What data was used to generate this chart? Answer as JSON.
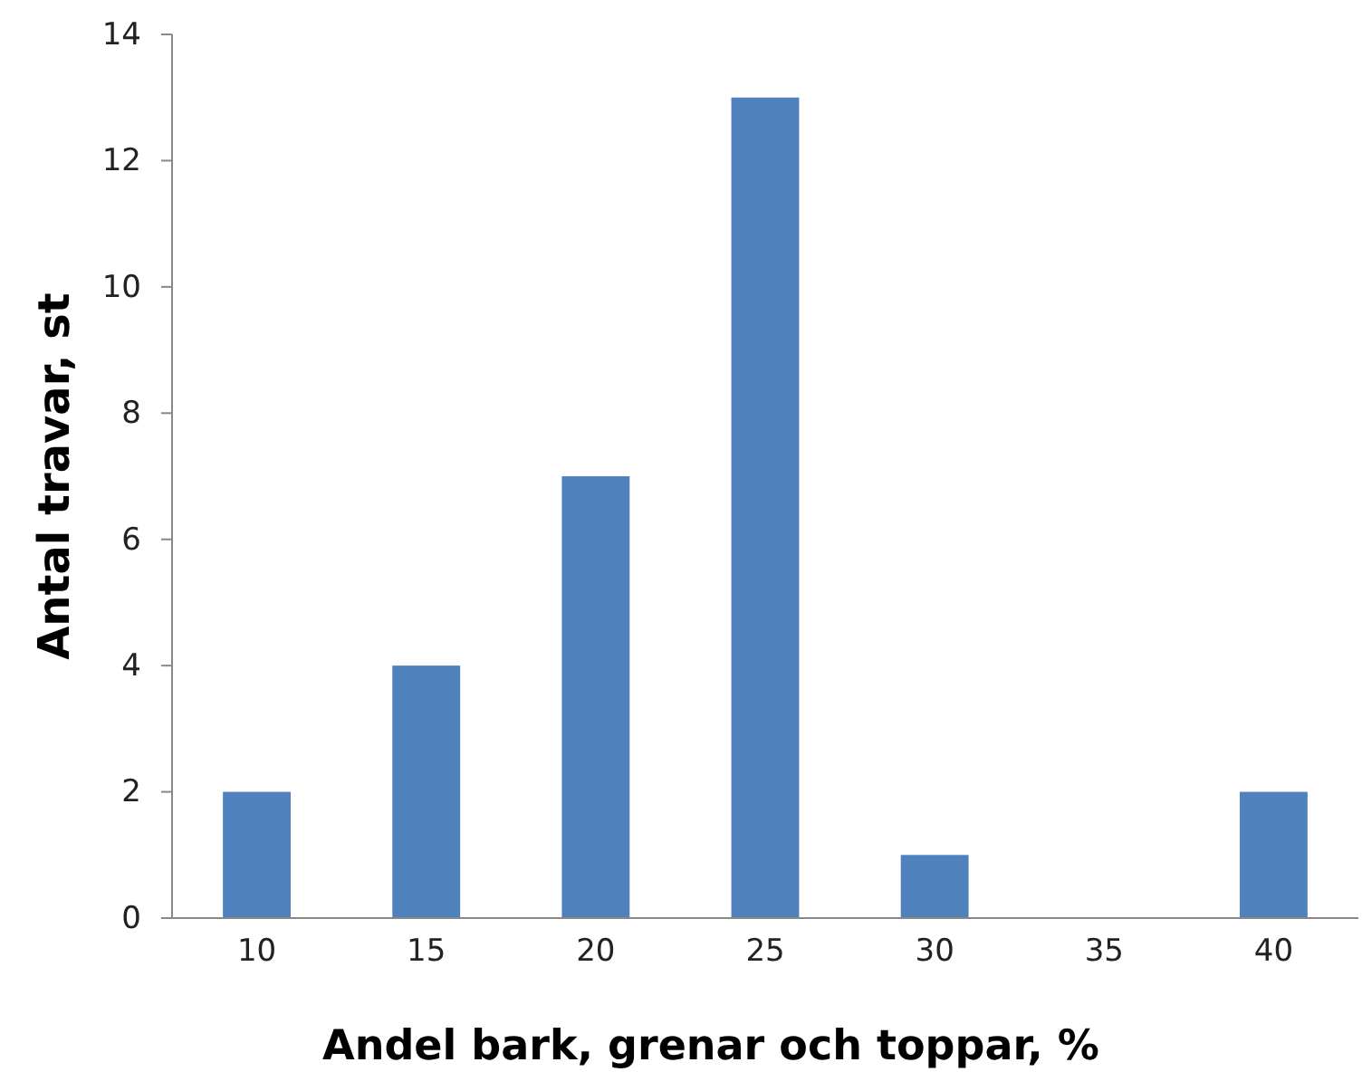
{
  "chart_data": {
    "type": "bar",
    "xlabel": "Andel bark, grenar och toppar, %",
    "ylabel": "Antal travar, st",
    "categories": [
      "10",
      "15",
      "20",
      "25",
      "30",
      "35",
      "40"
    ],
    "values": [
      2,
      4,
      7,
      13,
      1,
      0,
      2
    ],
    "color": "#4f81bd",
    "ylim": [
      0,
      14
    ],
    "yticks": [
      0,
      2,
      4,
      6,
      8,
      10,
      12,
      14
    ],
    "grid": false
  }
}
